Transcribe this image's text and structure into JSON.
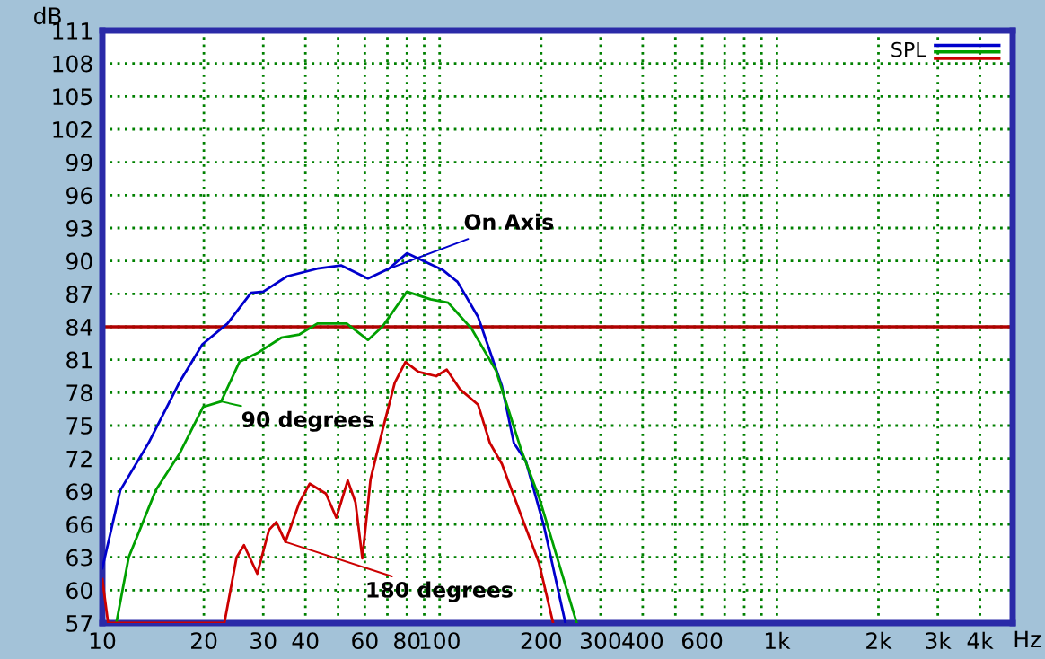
{
  "chart_data": {
    "type": "line",
    "xlabel": "Hz",
    "ylabel": "dB",
    "log": "x",
    "xlim": [
      10,
      5000
    ],
    "xticks": [
      10,
      20,
      30,
      40,
      {
        "value": 50,
        "label": null
      },
      60,
      {
        "value": 70,
        "label": null
      },
      80,
      {
        "value": 90,
        "label": null
      },
      100,
      200,
      300,
      400,
      {
        "value": 500,
        "label": null
      },
      600,
      {
        "value": 700,
        "label": null
      },
      {
        "value": 800,
        "label": null
      },
      {
        "value": 900,
        "label": null
      },
      {
        "value": 1000,
        "label": "1k"
      },
      {
        "value": 2000,
        "label": "2k"
      },
      {
        "value": 3000,
        "label": "3k"
      },
      {
        "value": 4000,
        "label": "4k"
      }
    ],
    "ylim": [
      57,
      111
    ],
    "yticks": [
      57,
      60,
      63,
      66,
      69,
      72,
      75,
      78,
      81,
      84,
      87,
      90,
      93,
      96,
      99,
      102,
      105,
      108,
      111
    ],
    "grid": true,
    "line_style": "solid",
    "ref_lines": [
      {
        "axis": "y",
        "value": 84,
        "color": "#b00000"
      }
    ],
    "series": [
      {
        "name": "On Axis",
        "color": "#0000cc",
        "x": [
          10,
          11.3,
          13.7,
          16.9,
          19.8,
          23.5,
          27.6,
          30,
          35.3,
          43.4,
          51,
          61.3,
          70.7,
          80,
          101.9,
          113,
          130,
          153,
          166,
          180,
          204,
          236
        ],
        "values": [
          62,
          69.1,
          73.4,
          78.9,
          82.4,
          84.3,
          87.1,
          87.2,
          88.6,
          89.3,
          89.6,
          88.4,
          89.3,
          90.7,
          89.2,
          88.1,
          84.9,
          78.6,
          73.4,
          71.8,
          65.8,
          57
        ]
      },
      {
        "name": "90 degrees",
        "color": "#00a000",
        "x": [
          11,
          11.97,
          14.4,
          16.9,
          19.9,
          22.5,
          25.5,
          28.8,
          33.9,
          38.4,
          43.4,
          53,
          61.3,
          67.6,
          80,
          94,
          106,
          124.5,
          147,
          159,
          174,
          197,
          255
        ],
        "values": [
          57,
          63,
          69.1,
          72.4,
          76.7,
          77.2,
          80.8,
          81.6,
          83,
          83.3,
          84.3,
          84.3,
          82.8,
          84,
          87.2,
          86.5,
          86.2,
          83.8,
          80,
          76.7,
          72.9,
          68.5,
          57
        ]
      },
      {
        "name": "180 degrees",
        "color": "#cc0000",
        "x": [
          10,
          10.4,
          23,
          25,
          26.3,
          28.8,
          31.2,
          32.8,
          34.9,
          38.4,
          41.2,
          46,
          49.4,
          53.4,
          56.3,
          59,
          62.4,
          67.6,
          73.6,
          79.2,
          86.5,
          97.7,
          105,
          115,
          130,
          141,
          153,
          174,
          197,
          217
        ],
        "values": [
          61,
          57,
          57,
          63,
          64.1,
          61.5,
          65.5,
          66.2,
          64.4,
          68,
          69.7,
          68.8,
          66.6,
          70,
          68,
          62.9,
          70.1,
          74.5,
          78.9,
          80.8,
          79.9,
          79.5,
          80.1,
          78.3,
          76.9,
          73.4,
          71.5,
          66.9,
          62.5,
          57
        ]
      }
    ],
    "annotations": [
      "SPL"
    ]
  }
}
